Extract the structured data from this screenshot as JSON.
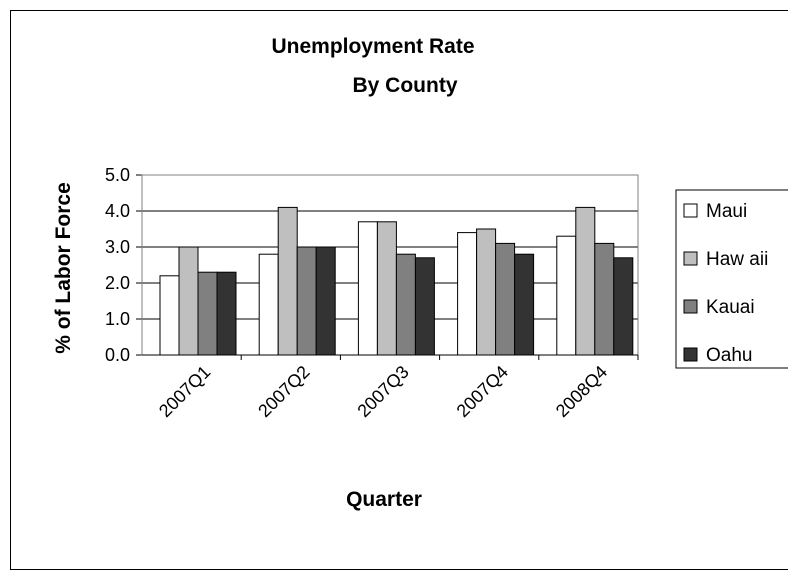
{
  "chart_data": {
    "type": "bar",
    "title": [
      "Unemployment Rate",
      "By County"
    ],
    "xlabel": "Quarter",
    "ylabel": "% of Labor Force",
    "categories": [
      "2007Q1",
      "2007Q2",
      "2007Q3",
      "2007Q4",
      "2008Q4"
    ],
    "series": [
      {
        "name": "Maui",
        "values": [
          2.2,
          2.8,
          3.7,
          3.4,
          3.3
        ],
        "color": "#ffffff"
      },
      {
        "name": "Haw aii",
        "values": [
          3.0,
          4.1,
          3.7,
          3.5,
          4.1
        ],
        "color": "#bfbfbf"
      },
      {
        "name": "Kauai",
        "values": [
          2.3,
          3.0,
          2.8,
          3.1,
          3.1
        ],
        "color": "#808080"
      },
      {
        "name": "Oahu",
        "values": [
          2.3,
          3.0,
          2.7,
          2.8,
          2.7
        ],
        "color": "#333333"
      }
    ],
    "yticks": [
      "0.0",
      "1.0",
      "2.0",
      "3.0",
      "4.0",
      "5.0"
    ],
    "ylim": [
      0,
      5
    ],
    "grid": true,
    "legend": "right"
  }
}
